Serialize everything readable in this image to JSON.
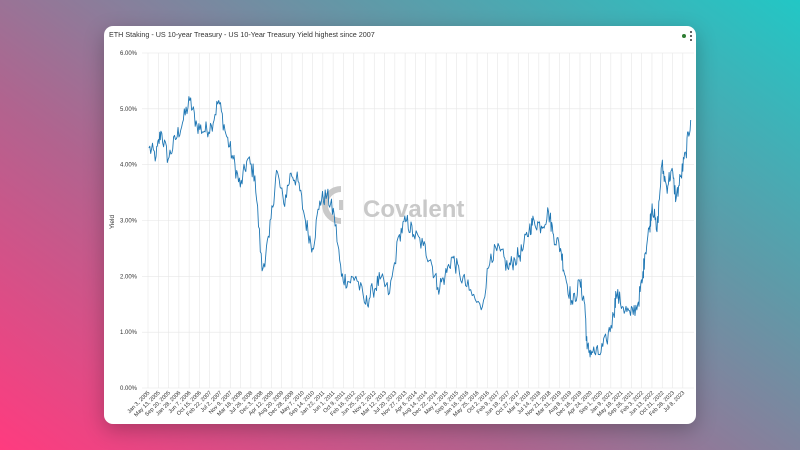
{
  "window": {
    "title": "ETH Staking - US 10-year Treasury - US 10-Year Treasury Yield highest since 2007",
    "status_color": "#2e7d32",
    "menu_icon": "more-vertical-icon"
  },
  "watermark": {
    "text": "Covalent",
    "icon": "covalent-logo-icon"
  },
  "colors": {
    "line": "#1f77b4",
    "grid": "#e6e6e6"
  },
  "chart_data": {
    "type": "line",
    "title": "",
    "xlabel": "",
    "ylabel": "Yield",
    "ylim": [
      0,
      6
    ],
    "grid": true,
    "yticks": [
      "0.00%",
      "1.00%",
      "2.00%",
      "3.00%",
      "4.00%",
      "5.00%",
      "6.00%"
    ],
    "xticks": [
      "Jan 3, 2005",
      "May 13, 2005",
      "Sep 20, 2005",
      "Jan 28, 2006",
      "Jun 7, 2006",
      "Oct 15, 2006",
      "Feb 22, 2007",
      "Jul 2, 2007",
      "Nov 9, 2007",
      "Mar 18, 2008",
      "Jul 26, 2008",
      "Dec 3, 2008",
      "Apr 12, 2009",
      "Aug 20, 2009",
      "Dec 28, 2009",
      "May 7, 2010",
      "Sep 14, 2010",
      "Jan 22, 2011",
      "Jun 1, 2011",
      "Oct 9, 2011",
      "Feb 16, 2012",
      "Jun 25, 2012",
      "Nov 2, 2012",
      "Mar 12, 2013",
      "Jul 20, 2013",
      "Nov 27, 2013",
      "Apr 6, 2014",
      "Aug 14, 2014",
      "Dec 22, 2014",
      "May 1, 2015",
      "Sep 8, 2015",
      "Jan 16, 2016",
      "May 25, 2016",
      "Oct 2, 2016",
      "Feb 9, 2017",
      "Jun 19, 2017",
      "Oct 27, 2017",
      "Mar 6, 2018",
      "Jul 14, 2018",
      "Nov 21, 2018",
      "Mar 31, 2019",
      "Aug 8, 2019",
      "Dec 16, 2019",
      "Apr 24, 2020",
      "Sep 1, 2020",
      "Jan 9, 2021",
      "May 19, 2021",
      "Sep 26, 2021",
      "Feb 3, 2022",
      "Jun 13, 2022",
      "Oct 21, 2022",
      "Feb 28, 2023",
      "Jul 8, 2023"
    ],
    "series": [
      {
        "x": [
          "2005-01",
          "2005-04",
          "2005-06",
          "2005-09",
          "2005-12",
          "2006-03",
          "2006-06",
          "2006-09",
          "2006-12",
          "2007-03",
          "2007-06",
          "2007-09",
          "2007-12",
          "2008-03",
          "2008-06",
          "2008-09",
          "2008-12",
          "2009-03",
          "2009-06",
          "2009-09",
          "2009-12",
          "2010-03",
          "2010-06",
          "2010-09",
          "2010-12",
          "2011-03",
          "2011-06",
          "2011-09",
          "2011-12",
          "2012-03",
          "2012-07",
          "2012-10",
          "2013-01",
          "2013-05",
          "2013-09",
          "2013-12",
          "2014-03",
          "2014-07",
          "2014-10",
          "2015-01",
          "2015-04",
          "2015-07",
          "2015-10",
          "2016-02",
          "2016-07",
          "2016-11",
          "2017-03",
          "2017-06",
          "2017-09",
          "2017-12",
          "2018-03",
          "2018-05",
          "2018-08",
          "2018-11",
          "2019-01",
          "2019-04",
          "2019-06",
          "2019-09",
          "2019-12",
          "2020-02",
          "2020-03",
          "2020-05",
          "2020-08",
          "2020-11",
          "2021-02",
          "2021-03",
          "2021-06",
          "2021-09",
          "2021-12",
          "2022-02",
          "2022-03",
          "2022-05",
          "2022-06",
          "2022-08",
          "2022-10",
          "2022-12",
          "2023-02",
          "2023-04",
          "2023-06",
          "2023-08",
          "2023-10"
        ],
        "values": [
          4.3,
          4.15,
          4.6,
          4.1,
          4.45,
          4.75,
          5.15,
          4.7,
          4.6,
          4.7,
          5.15,
          4.55,
          4.1,
          3.6,
          4.1,
          3.8,
          2.1,
          2.7,
          3.9,
          3.3,
          3.85,
          3.7,
          3.0,
          2.5,
          3.35,
          3.45,
          3.1,
          2.0,
          1.9,
          2.0,
          1.5,
          1.75,
          1.95,
          1.7,
          2.75,
          3.0,
          2.75,
          2.55,
          2.3,
          1.8,
          2.0,
          2.35,
          2.05,
          1.75,
          1.4,
          2.4,
          2.45,
          2.15,
          2.3,
          2.45,
          2.85,
          3.0,
          2.9,
          3.15,
          2.75,
          2.5,
          2.0,
          1.5,
          1.9,
          1.5,
          0.7,
          0.65,
          0.6,
          0.85,
          1.3,
          1.7,
          1.45,
          1.3,
          1.5,
          1.95,
          2.4,
          2.9,
          3.3,
          2.8,
          4.0,
          3.6,
          3.9,
          3.4,
          3.8,
          4.2,
          4.8
        ]
      }
    ]
  }
}
